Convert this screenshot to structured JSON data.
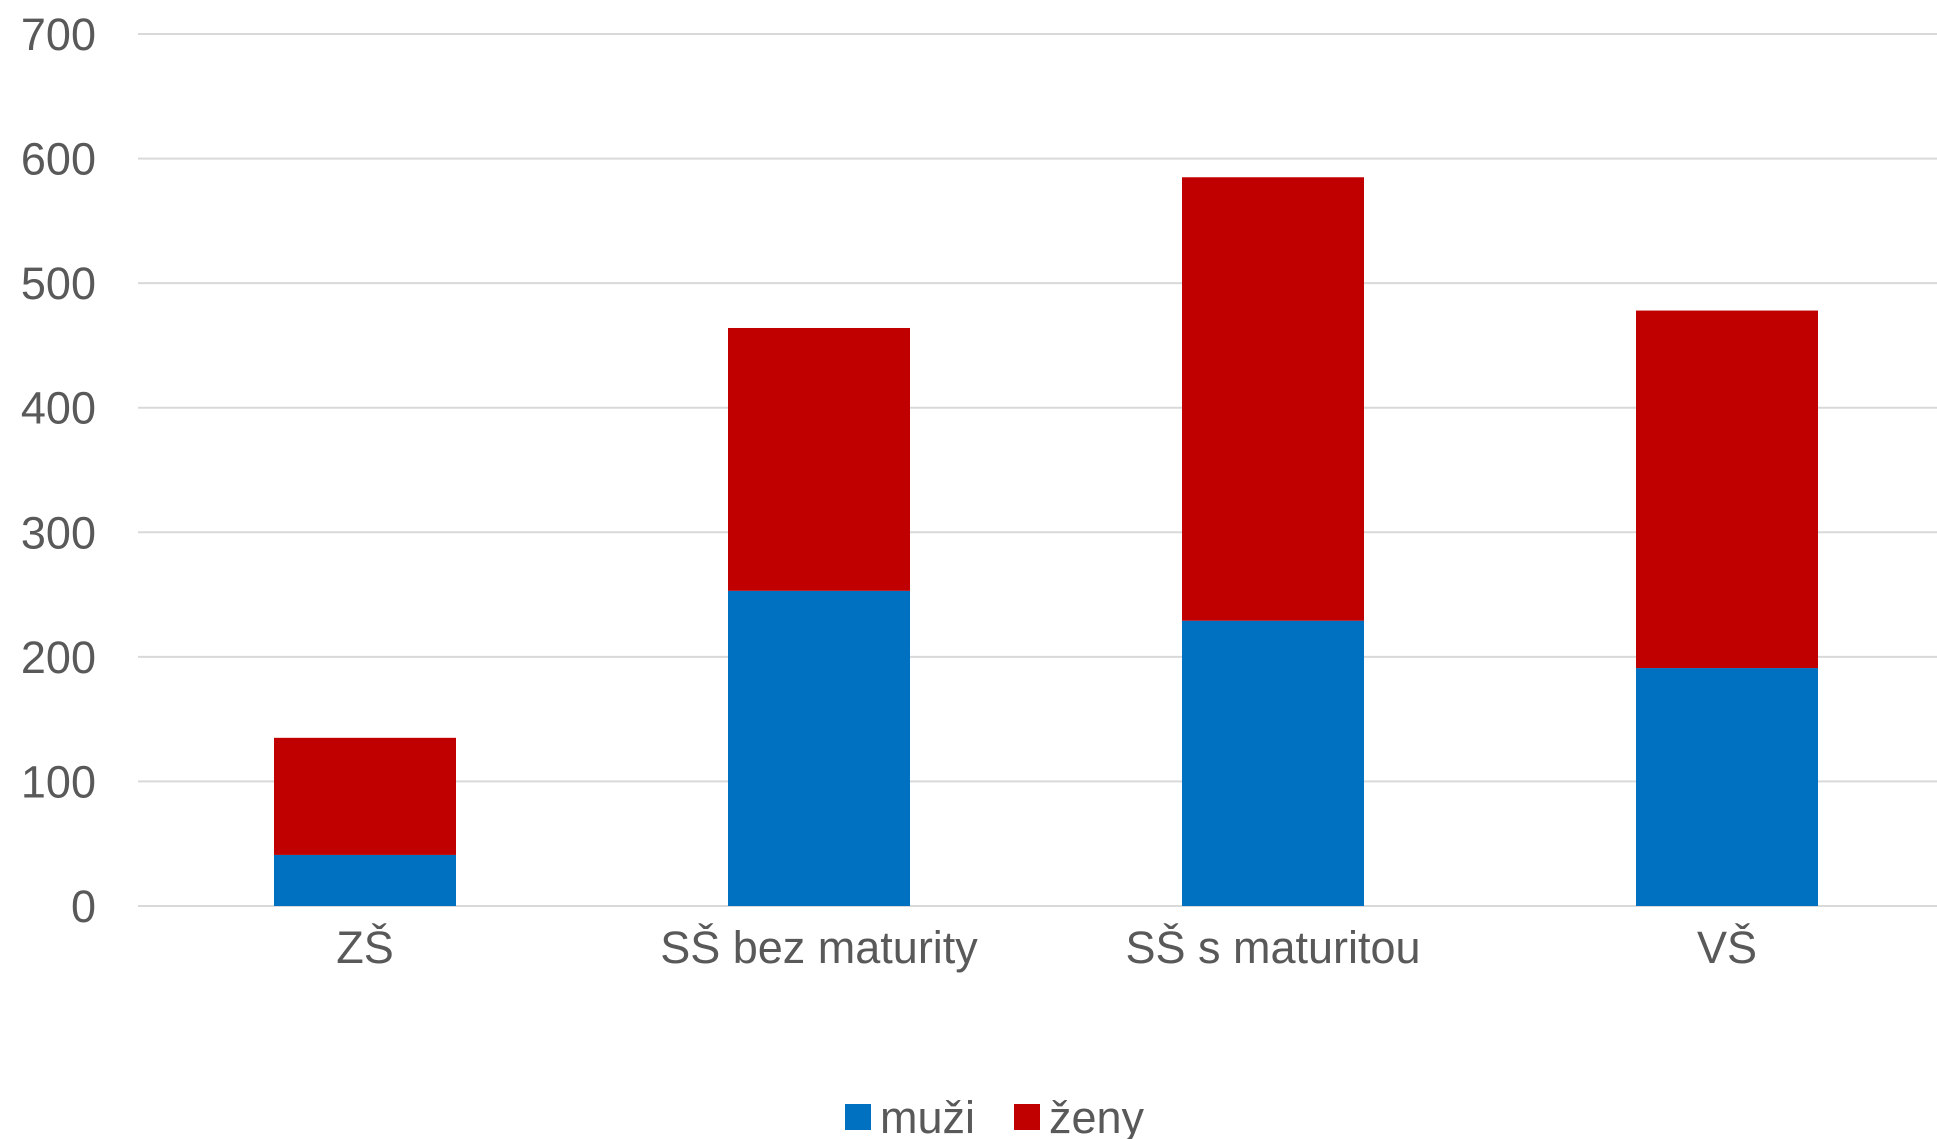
{
  "chart_data": {
    "type": "bar",
    "stacked": true,
    "categories": [
      "ZŠ",
      "SŠ bez maturity",
      "SŠ s maturitou",
      "VŠ"
    ],
    "series": [
      {
        "name": "muži",
        "color": "#0070c0",
        "values": [
          41,
          253,
          229,
          191
        ]
      },
      {
        "name": "ženy",
        "color": "#c00000",
        "values": [
          94,
          211,
          356,
          287
        ]
      }
    ],
    "ylim": [
      0,
      700
    ],
    "yticks": [
      0,
      100,
      200,
      300,
      400,
      500,
      600,
      700
    ],
    "grid": true,
    "grid_color": "#d9d9d9",
    "legend_position": "bottom",
    "title": "",
    "xlabel": "",
    "ylabel": ""
  }
}
